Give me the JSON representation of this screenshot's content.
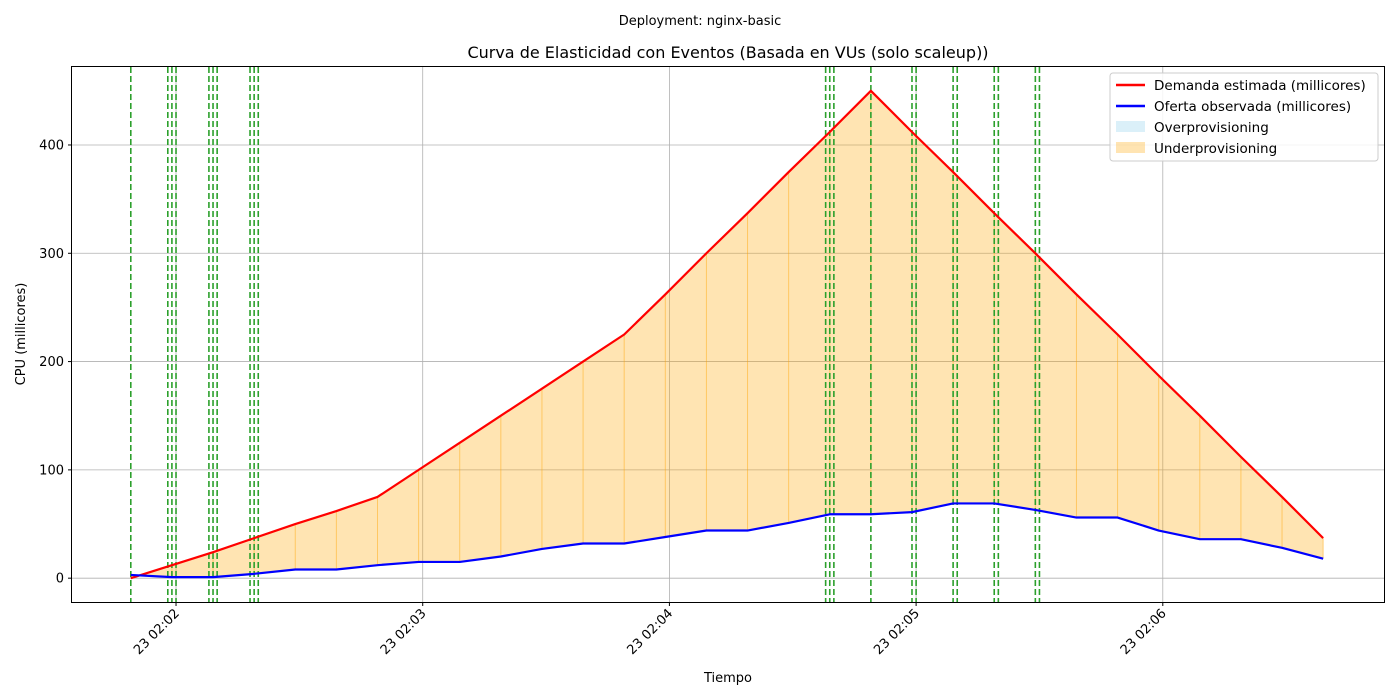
{
  "suptitle": "Deployment: nginx-basic",
  "chart_data": {
    "type": "line",
    "title": "Curva de Elasticidad con Eventos (Basada en VUs (solo scaleup))",
    "xlabel": "Tiempo",
    "ylabel": "CPU (millicores)",
    "x_ticks": [
      "23 02:02",
      "23 02:03",
      "23 02:04",
      "23 02:05",
      "23 02:06"
    ],
    "y_ticks": [
      "0",
      "100",
      "200",
      "300",
      "400"
    ],
    "ylim": [
      -22,
      472
    ],
    "xlim": [
      "02:01:34.7",
      "02:06:53.8"
    ],
    "grid": true,
    "legend_position": "top-right",
    "x": [
      "02:01:49",
      "02:01:59",
      "02:02:09",
      "02:02:19",
      "02:02:29",
      "02:02:39",
      "02:02:49",
      "02:02:59",
      "02:03:09",
      "02:03:19",
      "02:03:29",
      "02:03:39",
      "02:03:49",
      "02:03:59",
      "02:04:09",
      "02:04:19",
      "02:04:29",
      "02:04:39",
      "02:04:49",
      "02:04:59",
      "02:05:09",
      "02:05:19",
      "02:05:29",
      "02:05:39",
      "02:05:49",
      "02:05:59",
      "02:06:09",
      "02:06:19",
      "02:06:29",
      "02:06:39"
    ],
    "series": [
      {
        "name": "Demanda estimada (millicores)",
        "color": "#ff0000",
        "values": [
          0,
          12,
          24,
          37,
          50,
          62,
          75,
          100,
          125,
          150,
          175,
          200,
          225,
          262,
          300,
          337,
          375,
          412,
          450,
          412,
          375,
          337,
          300,
          262,
          225,
          187,
          150,
          112,
          75,
          37
        ]
      },
      {
        "name": "Oferta observada (millicores)",
        "color": "#0000ff",
        "values": [
          3,
          1,
          1,
          4,
          8,
          8,
          12,
          15,
          15,
          20,
          27,
          32,
          32,
          38,
          44,
          44,
          51,
          59,
          59,
          61,
          69,
          69,
          63,
          56,
          56,
          44,
          36,
          36,
          28,
          18
        ]
      }
    ],
    "fills": [
      {
        "name": "Overprovisioning",
        "color": "#87ceeb"
      },
      {
        "name": "Underprovisioning",
        "color": "#ffa500"
      }
    ],
    "event_lines": [
      "02:01:49",
      "02:01:58",
      "02:01:59",
      "02:02:00",
      "02:02:08",
      "02:02:09",
      "02:02:10",
      "02:02:18",
      "02:02:19",
      "02:02:20",
      "02:04:38",
      "02:04:39",
      "02:04:40",
      "02:04:49",
      "02:04:59",
      "02:05:00",
      "02:05:09",
      "02:05:10",
      "02:05:19",
      "02:05:20",
      "02:05:29",
      "02:05:30"
    ],
    "event_color": "#2ca02c"
  }
}
